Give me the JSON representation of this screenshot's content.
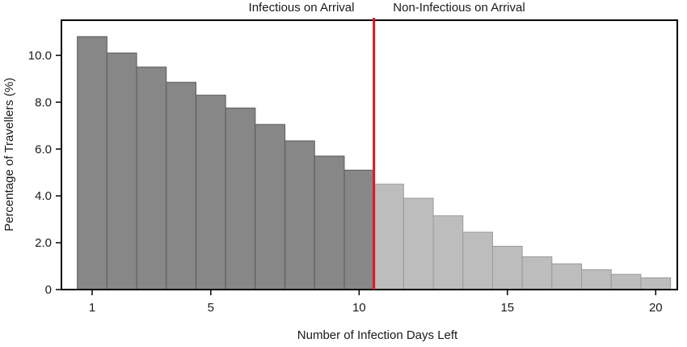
{
  "chart_data": {
    "type": "bar",
    "xlabel": "Number of Infection Days Left",
    "ylabel": "Percentage of Travellers (%)",
    "x": [
      1,
      2,
      3,
      4,
      5,
      6,
      7,
      8,
      9,
      10,
      11,
      12,
      13,
      14,
      15,
      16,
      17,
      18,
      19,
      20
    ],
    "values": [
      10.8,
      10.1,
      9.5,
      8.85,
      8.3,
      7.75,
      7.05,
      6.35,
      5.7,
      5.1,
      4.5,
      3.9,
      3.15,
      2.45,
      1.85,
      1.4,
      1.1,
      0.85,
      0.65,
      0.5
    ],
    "x_ticks": [
      1,
      5,
      10,
      15,
      20
    ],
    "x_tick_labels": [
      "1",
      "5",
      "10",
      "15",
      "20"
    ],
    "y_ticks": [
      0,
      2,
      4,
      6,
      8,
      10
    ],
    "y_tick_labels": [
      "0",
      "2.0",
      "4.0",
      "6.0",
      "8.0",
      "10.0"
    ],
    "xlim": [
      0.5,
      20.5
    ],
    "ylim": [
      0,
      11.5
    ],
    "divider_x": 10.5,
    "regions": [
      {
        "label": "Infectious on Arrival",
        "days": [
          1,
          10
        ],
        "color": "#878787"
      },
      {
        "label": "Non-Infectious on Arrival",
        "days": [
          11,
          20
        ],
        "color": "#bdbdbd"
      }
    ],
    "divider_color": "#e0141e",
    "grid": false
  }
}
